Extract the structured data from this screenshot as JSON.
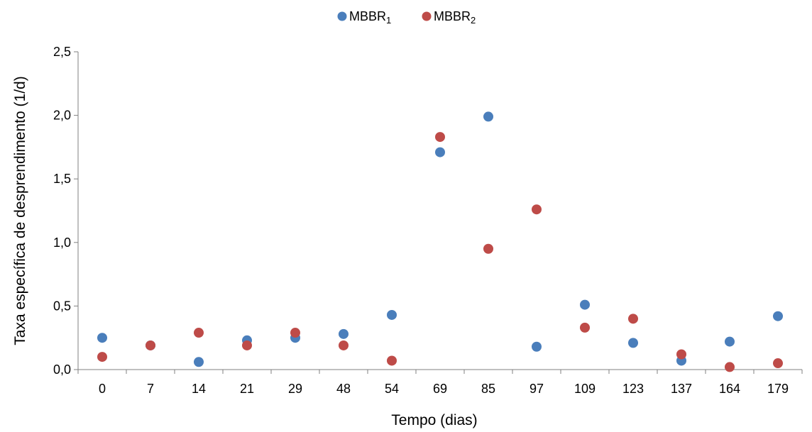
{
  "chart_data": {
    "type": "scatter",
    "title": "",
    "xlabel": "Tempo (dias)",
    "ylabel": "Taxa específica de desprendimento (1/d)",
    "categories": [
      "0",
      "7",
      "14",
      "21",
      "29",
      "48",
      "54",
      "69",
      "85",
      "97",
      "109",
      "123",
      "137",
      "164",
      "179"
    ],
    "ylim": [
      0,
      2.5
    ],
    "yticks": [
      "0,0",
      "0,5",
      "1,0",
      "1,5",
      "2,0",
      "2,5"
    ],
    "grid": false,
    "legend_position": "top-center",
    "series": [
      {
        "name": "MBBR",
        "name_subscript": "1",
        "color": "#4a7ebb",
        "values": [
          0.25,
          0.19,
          0.06,
          0.23,
          0.25,
          0.28,
          0.43,
          1.71,
          1.99,
          0.18,
          0.51,
          0.21,
          0.07,
          0.22,
          0.42
        ]
      },
      {
        "name": "MBBR",
        "name_subscript": "2",
        "color": "#be4b48",
        "values": [
          0.1,
          0.19,
          0.29,
          0.19,
          0.29,
          0.19,
          0.07,
          1.83,
          0.95,
          1.26,
          0.33,
          0.4,
          0.12,
          0.02,
          0.05
        ]
      }
    ]
  }
}
